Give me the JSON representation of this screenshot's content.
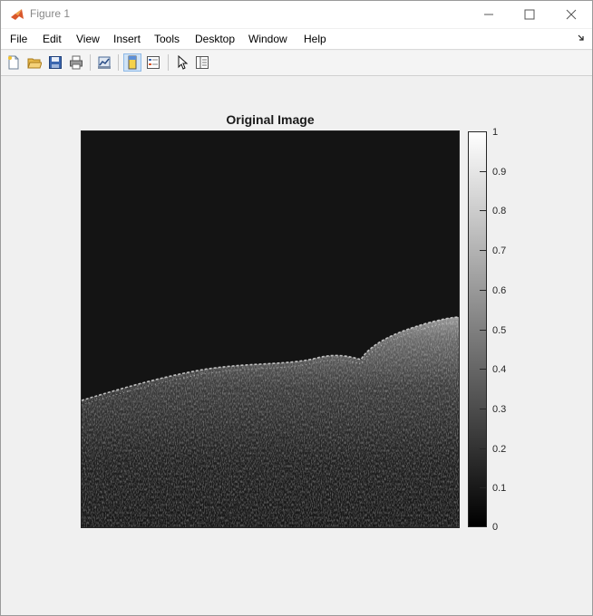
{
  "window": {
    "title": "Figure 1",
    "icon": "matlab-icon"
  },
  "controls": {
    "minimize": "minimize-icon",
    "maximize": "maximize-icon",
    "close": "close-icon"
  },
  "menu": [
    "File",
    "Edit",
    "View",
    "Insert",
    "Tools",
    "Desktop",
    "Window",
    "Help"
  ],
  "toolbar": [
    "new-figure-icon",
    "open-file-icon",
    "save-icon",
    "print-icon",
    "link-plot-icon",
    "insert-colorbar-icon",
    "insert-legend-icon",
    "select-arrow-icon",
    "property-inspector-icon"
  ],
  "plot": {
    "title": "Original Image"
  },
  "colorbar": {
    "ticks": [
      "1",
      "0.9",
      "0.8",
      "0.7",
      "0.6",
      "0.5",
      "0.4",
      "0.3",
      "0.2",
      "0.1",
      "0"
    ]
  }
}
